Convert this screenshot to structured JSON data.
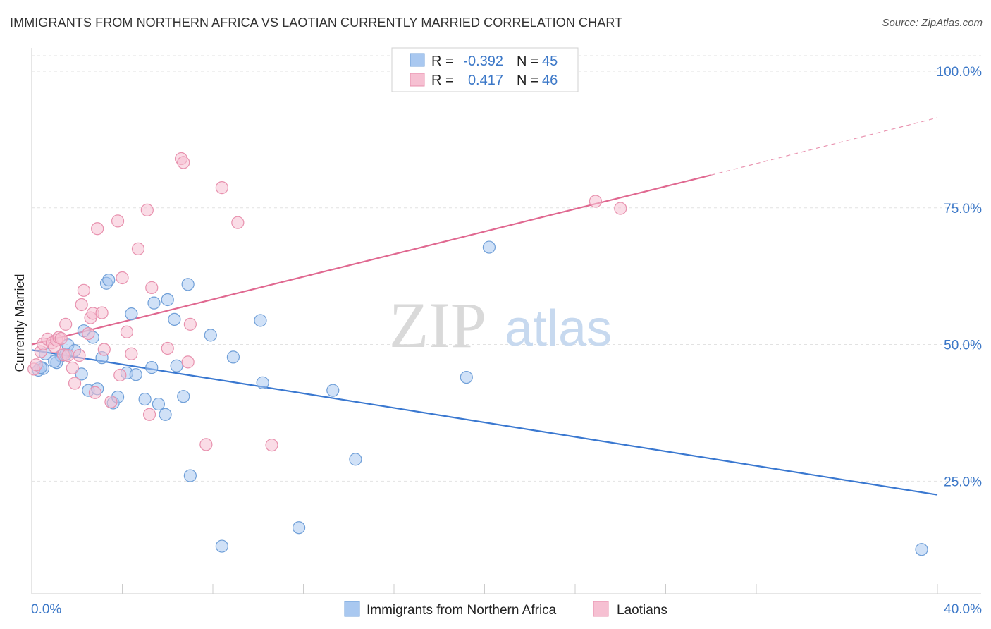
{
  "title": "IMMIGRANTS FROM NORTHERN AFRICA VS LAOTIAN CURRENTLY MARRIED CORRELATION CHART",
  "source": "Source: ZipAtlas.com",
  "watermark": {
    "zip": "ZIP",
    "atlas": "atlas"
  },
  "chart_data": {
    "type": "scatter",
    "title": "IMMIGRANTS FROM NORTHERN AFRICA VS LAOTIAN CURRENTLY MARRIED CORRELATION CHART",
    "xlabel": "",
    "ylabel": "Currently Married",
    "xlim": [
      0,
      40
    ],
    "ylim": [
      4.4,
      104
    ],
    "x_tick_labels": [
      "0.0%",
      "40.0%"
    ],
    "y_ticks": [
      25,
      50,
      75,
      100
    ],
    "y_tick_labels": [
      "25.0%",
      "50.0%",
      "75.0%",
      "100.0%"
    ],
    "grid": true,
    "legend_position": "top-center",
    "stats": [
      {
        "r_label": "R =",
        "r_value": "-0.392",
        "n_label": "N =",
        "n_value": "45"
      },
      {
        "r_label": "R =",
        "r_value": "0.417",
        "n_label": "N =",
        "n_value": "46"
      }
    ],
    "series": [
      {
        "name": "Immigrants from Northern Africa",
        "color": "#a9c8f0",
        "stroke": "#6f9fd8",
        "line_color": "#3a78d0",
        "trend": {
          "x": [
            0,
            40
          ],
          "y": [
            49.0,
            22.5
          ]
        },
        "points": [
          [
            0.3,
            45.3
          ],
          [
            0.5,
            45.6
          ],
          [
            0.6,
            48.3
          ],
          [
            1.1,
            46.7
          ],
          [
            1.3,
            47.9
          ],
          [
            1.5,
            48.2
          ],
          [
            1.6,
            49.9
          ],
          [
            1.9,
            48.9
          ],
          [
            2.2,
            44.6
          ],
          [
            2.3,
            52.5
          ],
          [
            2.5,
            41.6
          ],
          [
            2.7,
            51.3
          ],
          [
            2.9,
            41.9
          ],
          [
            3.1,
            47.6
          ],
          [
            3.3,
            61.2
          ],
          [
            3.4,
            61.8
          ],
          [
            3.6,
            39.3
          ],
          [
            3.8,
            40.4
          ],
          [
            4.2,
            44.8
          ],
          [
            4.4,
            55.6
          ],
          [
            4.6,
            44.5
          ],
          [
            5.0,
            40.0
          ],
          [
            5.3,
            45.8
          ],
          [
            5.4,
            57.6
          ],
          [
            5.6,
            39.1
          ],
          [
            5.9,
            37.2
          ],
          [
            6.0,
            58.2
          ],
          [
            6.3,
            54.6
          ],
          [
            6.4,
            46.1
          ],
          [
            6.7,
            40.5
          ],
          [
            6.9,
            61.0
          ],
          [
            7.0,
            26.0
          ],
          [
            7.9,
            51.7
          ],
          [
            8.4,
            13.1
          ],
          [
            8.9,
            47.7
          ],
          [
            10.1,
            54.4
          ],
          [
            10.2,
            43.0
          ],
          [
            11.8,
            16.5
          ],
          [
            13.3,
            41.6
          ],
          [
            14.3,
            29.0
          ],
          [
            19.2,
            44.0
          ],
          [
            20.2,
            67.8
          ],
          [
            39.3,
            12.5
          ],
          [
            0.4,
            45.8
          ],
          [
            1.0,
            46.9
          ]
        ]
      },
      {
        "name": "Laotians",
        "color": "#f6c0d2",
        "stroke": "#e891ae",
        "line_color": "#e06890",
        "trend": {
          "x": [
            0,
            30
          ],
          "y": [
            50.0,
            81.0
          ]
        },
        "trend_extension": {
          "x": [
            30,
            40
          ],
          "y": [
            81.0,
            91.5
          ]
        },
        "points": [
          [
            0.1,
            45.5
          ],
          [
            0.2,
            46.3
          ],
          [
            0.4,
            48.7
          ],
          [
            0.5,
            50.1
          ],
          [
            0.7,
            51.0
          ],
          [
            0.9,
            50.3
          ],
          [
            1.0,
            49.6
          ],
          [
            1.1,
            50.8
          ],
          [
            1.2,
            51.3
          ],
          [
            1.4,
            48.1
          ],
          [
            1.5,
            53.7
          ],
          [
            1.6,
            48.0
          ],
          [
            1.8,
            45.7
          ],
          [
            1.9,
            42.9
          ],
          [
            2.1,
            48.0
          ],
          [
            2.2,
            57.3
          ],
          [
            2.3,
            59.9
          ],
          [
            2.5,
            52.0
          ],
          [
            2.6,
            54.9
          ],
          [
            2.7,
            55.7
          ],
          [
            2.8,
            41.2
          ],
          [
            2.9,
            71.2
          ],
          [
            3.1,
            55.8
          ],
          [
            3.2,
            49.1
          ],
          [
            3.5,
            39.5
          ],
          [
            3.8,
            72.6
          ],
          [
            3.9,
            44.4
          ],
          [
            4.0,
            62.2
          ],
          [
            4.2,
            52.3
          ],
          [
            4.4,
            48.3
          ],
          [
            4.7,
            67.5
          ],
          [
            5.1,
            74.6
          ],
          [
            5.2,
            37.2
          ],
          [
            5.3,
            60.4
          ],
          [
            6.0,
            49.3
          ],
          [
            6.6,
            84.0
          ],
          [
            6.7,
            83.3
          ],
          [
            6.9,
            46.8
          ],
          [
            7.0,
            53.7
          ],
          [
            7.7,
            31.7
          ],
          [
            8.4,
            78.7
          ],
          [
            9.1,
            72.3
          ],
          [
            10.6,
            31.6
          ],
          [
            24.9,
            76.2
          ],
          [
            26.0,
            74.9
          ],
          [
            1.3,
            51.1
          ]
        ]
      }
    ]
  },
  "legend": {
    "items": [
      {
        "label": "Immigrants from Northern Africa",
        "color": "#a9c8f0",
        "stroke": "#6f9fd8"
      },
      {
        "label": "Laotians",
        "color": "#f6c0d2",
        "stroke": "#e891ae"
      }
    ]
  }
}
